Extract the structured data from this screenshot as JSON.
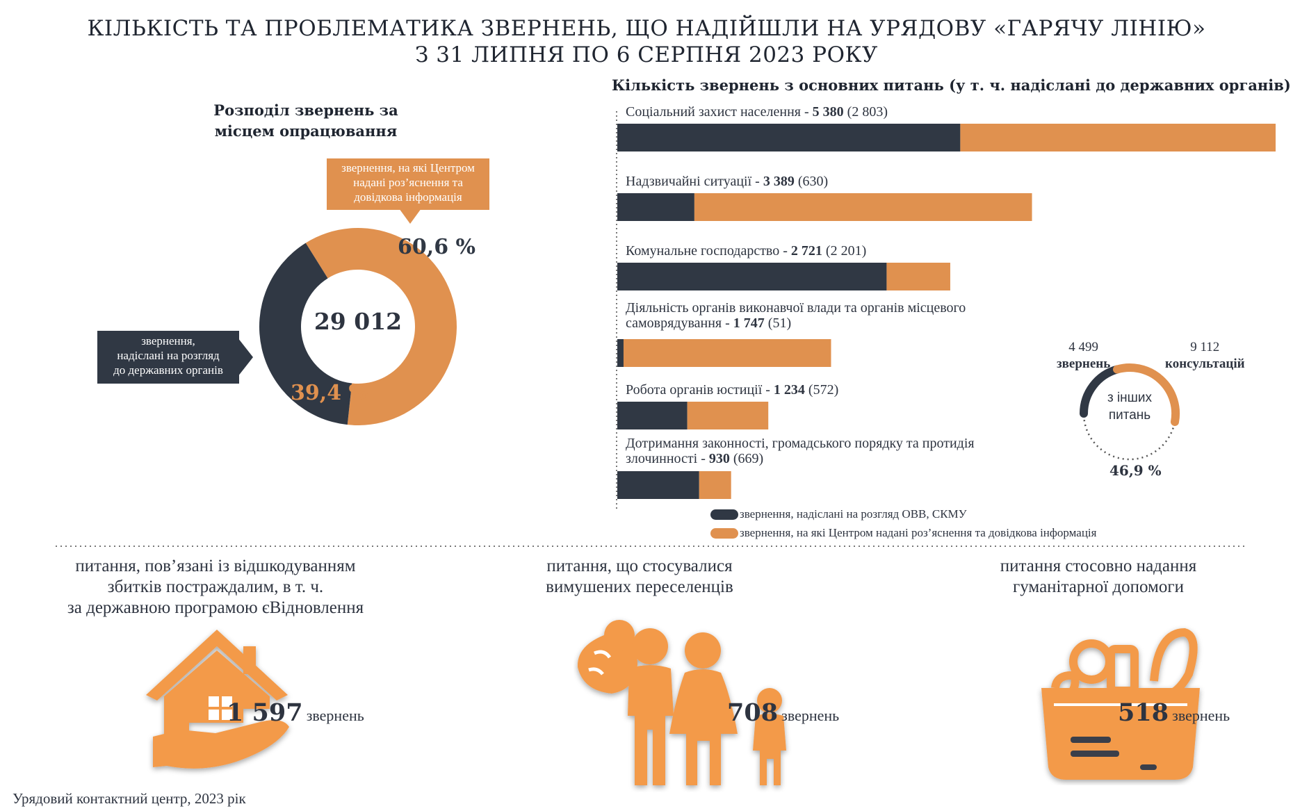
{
  "title": {
    "line1": "КІЛЬКІСТЬ ТА ПРОБЛЕМАТИКА ЗВЕРНЕНЬ, ЩО НАДІЙШЛИ НА УРЯДОВУ «ГАРЯЧУ ЛІНІЮ»",
    "line2": "З 31 ЛИПНЯ ПО 6 СЕРПНЯ 2023 РОКУ"
  },
  "donut": {
    "title_line1": "Розподіл звернень за",
    "title_line2": "місцем опрацювання",
    "total": "29 012",
    "orange_pct": "60,6 %",
    "dark_pct": "39,4 %",
    "orange_callout_l1": "звернення, на які Центром",
    "orange_callout_l2": "надані роз’яснення та",
    "orange_callout_l3": "довідкова інформація",
    "dark_callout_l1": "звернення,",
    "dark_callout_l2": "надіслані на розгляд",
    "dark_callout_l3": "до державних органів"
  },
  "bars": {
    "title": "Кількість звернень з основних питань (у т. ч. надіслані до державних органів)",
    "legend_dark": "звернення, надіслані на розгляд ОВВ, СКМУ",
    "legend_orange": "звернення, на які Центром надані роз’яснення та довідкова інформація"
  },
  "chart_data": {
    "type": "bar",
    "orientation": "horizontal",
    "stacked": true,
    "title": "Кількість звернень з основних питань (у т. ч. надіслані до державних органів)",
    "categories": [
      {
        "label": "Соціальний захист населення - ",
        "total": "5 380",
        "sent": "(2 803)"
      },
      {
        "label": "Надзвичайні ситуації - ",
        "total": "3 389",
        "sent": "(630)"
      },
      {
        "label": "Комунальне господарство - ",
        "total": "2 721",
        "sent": "(2 201)"
      },
      {
        "label": "Діяльність органів виконавчої влади та органів місцевого самоврядування - ",
        "total": "1 747",
        "sent": "(51)"
      },
      {
        "label": "Робота органів юстиції - ",
        "total": "1 234",
        "sent": "(572)"
      },
      {
        "label": "Дотримання законності, громадського порядку та протидія злочинності - ",
        "total": "930",
        "sent": "(669)"
      }
    ],
    "series": [
      {
        "name": "звернення, надіслані на розгляд ОВВ, СКМУ",
        "color": "#303844",
        "values": [
          2803,
          630,
          2201,
          51,
          572,
          669
        ]
      },
      {
        "name": "звернення, на які Центром надані роз’яснення та довідкова інформація",
        "color": "#e0914f",
        "values": [
          2577,
          2759,
          520,
          1696,
          662,
          261
        ]
      }
    ],
    "donut": {
      "total": 29012,
      "slices": [
        {
          "name": "звернення, на які Центром надані роз’яснення та довідкова інформація",
          "value": 60.6,
          "color": "#e0914f"
        },
        {
          "name": "звернення, надіслані на розгляд до державних органів",
          "value": 39.4,
          "color": "#303844"
        }
      ]
    },
    "other_issues": {
      "requests": 4499,
      "consultations": 9112,
      "pct_label": "46,9 %"
    }
  },
  "other": {
    "requests_num": "4 499",
    "requests_word": "звернень",
    "consult_num": "9 112",
    "consult_word": "консультацій",
    "center_l1": "з інших",
    "center_l2": "питань",
    "pct": "46,9 %"
  },
  "sections": [
    {
      "title_l1": "питання, пов’язані із відшкодуванням",
      "title_l2": "збитків постраждалим, в т. ч.",
      "title_l3": "за державною програмою єВідновлення",
      "count": "1 597",
      "word": "звернень",
      "icon": "house-in-hand-icon"
    },
    {
      "title_l1": "питання, що стосувалися",
      "title_l2": "вимушених переселенців",
      "count": "708",
      "word": "звернень",
      "icon": "refugee-family-icon"
    },
    {
      "title_l1": "питання стосовно надання",
      "title_l2": "гуманітарної допомоги",
      "count": "518",
      "word": "звернень",
      "icon": "food-basket-icon"
    }
  ],
  "footer": "Урядовий контактний центр, 2023 рік",
  "colors": {
    "dark": "#303844",
    "orange": "#e0914f",
    "icon_orange": "#f39a4a"
  }
}
